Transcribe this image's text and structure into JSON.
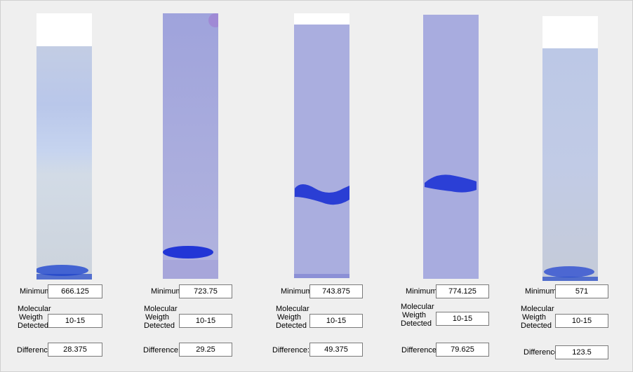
{
  "labels": {
    "minimum": "Minimum",
    "molecular": "Molecular",
    "weigth": "Weigth",
    "detected": "Detected",
    "difference": "Difference:"
  },
  "lanes": [
    {
      "minimum": "666.125",
      "molecular_weight": "10-15",
      "difference": "28.375"
    },
    {
      "minimum": "723.75",
      "molecular_weight": "10-15",
      "difference": "29.25"
    },
    {
      "minimum": "743.875",
      "molecular_weight": "10-15",
      "difference": "49.375"
    },
    {
      "minimum": "774.125",
      "molecular_weight": "10-15",
      "difference": "79.625"
    },
    {
      "minimum": "571",
      "molecular_weight": "10-15",
      "difference": "123.5"
    }
  ],
  "colors": {
    "gel_light": "#c9d2e6",
    "gel_purple": "#a6a9dc",
    "band_blue": "#1e3ccf",
    "window_bg": "#efefef"
  }
}
